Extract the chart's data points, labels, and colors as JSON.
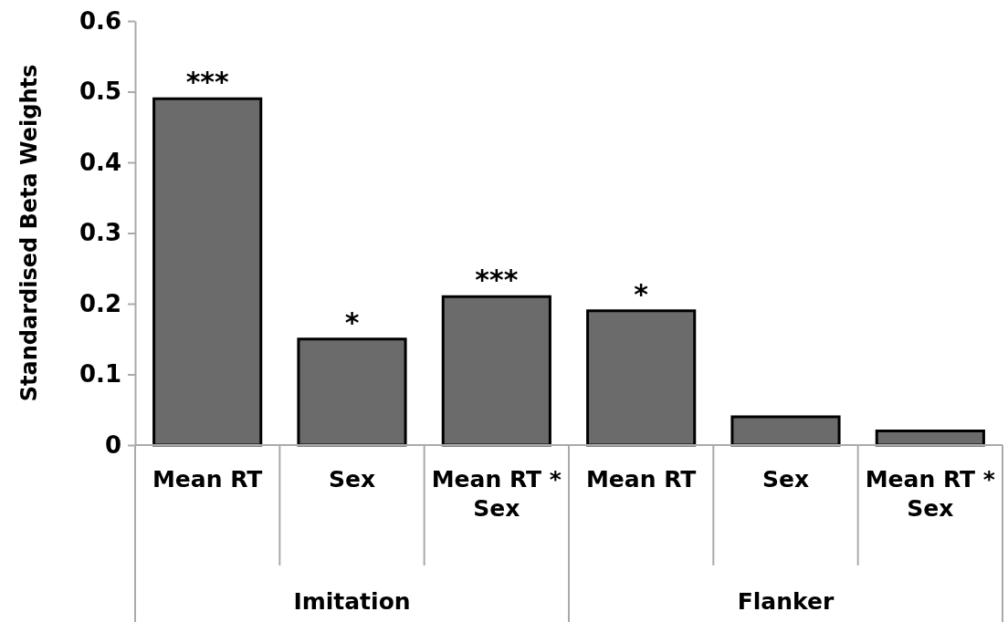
{
  "chart_data": {
    "type": "bar",
    "ylabel": "Standardised Beta Weights",
    "categories": [
      "Mean RT",
      "Sex",
      "Mean RT * Sex",
      "Mean RT",
      "Sex",
      "Mean RT * Sex"
    ],
    "values": [
      0.49,
      0.15,
      0.21,
      0.19,
      0.04,
      0.02
    ],
    "color": "#6b6b6b",
    "value_labels": [
      "***",
      "*",
      "***",
      "*",
      null,
      null
    ],
    "ylim": [
      0,
      0.6
    ],
    "yticks": [
      0,
      0.1,
      0.2,
      0.3,
      0.4,
      0.5,
      0.6
    ],
    "grid": false,
    "annotations": [
      "Imitation",
      "Flanker"
    ]
  }
}
